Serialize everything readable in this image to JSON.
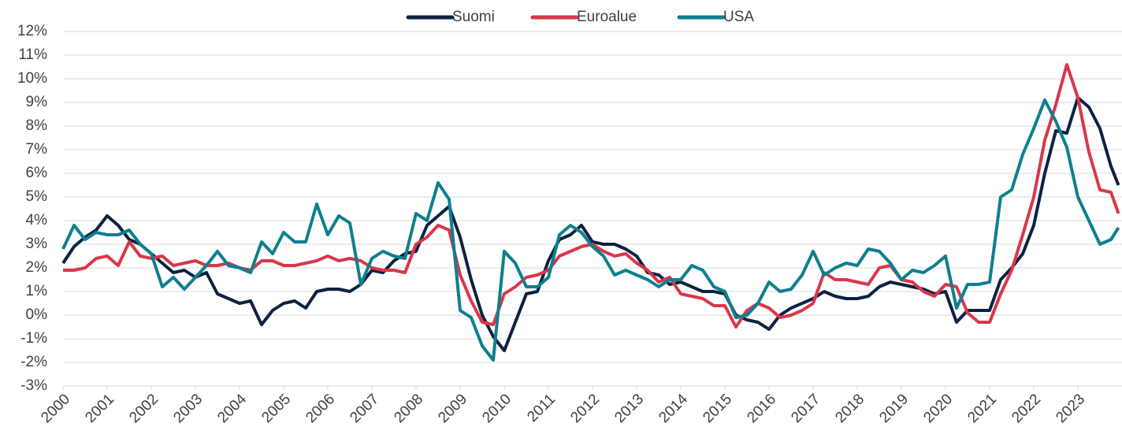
{
  "chart_data": {
    "type": "line",
    "x": [
      2000,
      2000.25,
      2000.5,
      2000.75,
      2001,
      2001.25,
      2001.5,
      2001.75,
      2002,
      2002.25,
      2002.5,
      2002.75,
      2003,
      2003.25,
      2003.5,
      2003.75,
      2004,
      2004.25,
      2004.5,
      2004.75,
      2005,
      2005.25,
      2005.5,
      2005.75,
      2006,
      2006.25,
      2006.5,
      2006.75,
      2007,
      2007.25,
      2007.5,
      2007.75,
      2008,
      2008.25,
      2008.5,
      2008.75,
      2009,
      2009.25,
      2009.5,
      2009.75,
      2010,
      2010.25,
      2010.5,
      2010.75,
      2011,
      2011.25,
      2011.5,
      2011.75,
      2012,
      2012.25,
      2012.5,
      2012.75,
      2013,
      2013.25,
      2013.5,
      2013.75,
      2014,
      2014.25,
      2014.5,
      2014.75,
      2015,
      2015.25,
      2015.5,
      2015.75,
      2016,
      2016.25,
      2016.5,
      2016.75,
      2017,
      2017.25,
      2017.5,
      2017.75,
      2018,
      2018.25,
      2018.5,
      2018.75,
      2019,
      2019.25,
      2019.5,
      2019.75,
      2020,
      2020.25,
      2020.5,
      2020.75,
      2021,
      2021.25,
      2021.5,
      2021.75,
      2022,
      2022.25,
      2022.5,
      2022.75,
      2023,
      2023.25,
      2023.5,
      2023.75,
      2023.92
    ],
    "series": [
      {
        "name": "Suomi",
        "color": "#0d2240",
        "values": [
          2.2,
          2.9,
          3.3,
          3.6,
          4.2,
          3.8,
          3.2,
          3.0,
          2.6,
          2.2,
          1.8,
          1.9,
          1.6,
          1.8,
          0.9,
          0.7,
          0.5,
          0.6,
          -0.4,
          0.2,
          0.5,
          0.6,
          0.3,
          1.0,
          1.1,
          1.1,
          1.0,
          1.3,
          1.9,
          1.8,
          2.3,
          2.6,
          2.7,
          3.8,
          4.2,
          4.6,
          3.3,
          1.5,
          0.0,
          -0.9,
          -1.5,
          -0.3,
          0.9,
          1.0,
          2.3,
          3.2,
          3.4,
          3.8,
          3.1,
          3.0,
          3.0,
          2.8,
          2.5,
          1.8,
          1.7,
          1.3,
          1.4,
          1.2,
          1.0,
          1.0,
          0.9,
          0.0,
          -0.2,
          -0.3,
          -0.6,
          0.0,
          0.3,
          0.5,
          0.7,
          1.0,
          0.8,
          0.7,
          0.7,
          0.8,
          1.2,
          1.4,
          1.3,
          1.2,
          1.1,
          0.9,
          1.0,
          -0.3,
          0.2,
          0.2,
          0.2,
          1.5,
          2.0,
          2.6,
          3.8,
          6.0,
          7.8,
          7.7,
          9.2,
          8.8,
          7.9,
          6.3,
          5.5
        ]
      },
      {
        "name": "Euroalue",
        "color": "#d9374b",
        "values": [
          1.9,
          1.9,
          2.0,
          2.4,
          2.5,
          2.1,
          3.1,
          2.5,
          2.4,
          2.5,
          2.1,
          2.2,
          2.3,
          2.1,
          2.1,
          2.2,
          2.0,
          1.9,
          2.3,
          2.3,
          2.1,
          2.1,
          2.2,
          2.3,
          2.5,
          2.3,
          2.4,
          2.3,
          2.0,
          1.9,
          1.9,
          1.8,
          3.0,
          3.3,
          3.8,
          3.6,
          1.7,
          0.6,
          -0.3,
          -0.4,
          0.9,
          1.2,
          1.6,
          1.7,
          1.9,
          2.5,
          2.7,
          2.9,
          3.0,
          2.7,
          2.5,
          2.6,
          2.2,
          1.9,
          1.4,
          1.6,
          0.9,
          0.8,
          0.7,
          0.4,
          0.4,
          -0.5,
          0.2,
          0.5,
          0.3,
          -0.1,
          0.0,
          0.2,
          0.5,
          1.8,
          1.5,
          1.5,
          1.4,
          1.3,
          2.0,
          2.1,
          1.5,
          1.4,
          1.0,
          0.8,
          1.3,
          1.2,
          0.1,
          -0.3,
          -0.3,
          0.9,
          1.9,
          3.4,
          5.0,
          7.4,
          8.9,
          10.6,
          9.2,
          6.9,
          5.3,
          5.2,
          4.3
        ]
      },
      {
        "name": "USA",
        "color": "#0e7f8e",
        "values": [
          2.8,
          3.8,
          3.2,
          3.5,
          3.4,
          3.4,
          3.6,
          3.0,
          2.6,
          1.2,
          1.6,
          1.1,
          1.6,
          2.1,
          2.7,
          2.1,
          2.0,
          1.8,
          3.1,
          2.6,
          3.5,
          3.1,
          3.1,
          4.7,
          3.4,
          4.2,
          3.9,
          1.3,
          2.4,
          2.7,
          2.5,
          2.4,
          4.3,
          4.0,
          5.6,
          4.9,
          0.2,
          -0.1,
          -1.3,
          -1.9,
          2.7,
          2.2,
          1.2,
          1.2,
          1.6,
          3.4,
          3.8,
          3.5,
          2.9,
          2.5,
          1.7,
          1.9,
          1.7,
          1.5,
          1.2,
          1.5,
          1.5,
          2.1,
          1.9,
          1.2,
          1.0,
          -0.1,
          0.0,
          0.5,
          1.4,
          1.0,
          1.1,
          1.7,
          2.7,
          1.7,
          2.0,
          2.2,
          2.1,
          2.8,
          2.7,
          2.2,
          1.5,
          1.9,
          1.8,
          2.1,
          2.5,
          0.3,
          1.3,
          1.3,
          1.4,
          5.0,
          5.3,
          6.8,
          7.9,
          9.1,
          8.2,
          7.1,
          5.0,
          4.0,
          3.0,
          3.2,
          3.7
        ]
      }
    ],
    "xlim": [
      2000,
      2024
    ],
    "xticks": [
      2000,
      2001,
      2002,
      2003,
      2004,
      2005,
      2006,
      2007,
      2008,
      2009,
      2010,
      2011,
      2012,
      2013,
      2014,
      2015,
      2016,
      2017,
      2018,
      2019,
      2020,
      2021,
      2022,
      2023
    ],
    "ylim": [
      -3,
      12
    ],
    "yticks": [
      {
        "value": -3,
        "label": "-3%"
      },
      {
        "value": -2,
        "label": "-2%"
      },
      {
        "value": -1,
        "label": "-1%"
      },
      {
        "value": 0,
        "label": "0%"
      },
      {
        "value": 1,
        "label": "1%"
      },
      {
        "value": 2,
        "label": "2%"
      },
      {
        "value": 3,
        "label": "3%"
      },
      {
        "value": 4,
        "label": "4%"
      },
      {
        "value": 5,
        "label": "5%"
      },
      {
        "value": 6,
        "label": "6%"
      },
      {
        "value": 7,
        "label": "7%"
      },
      {
        "value": 8,
        "label": "8%"
      },
      {
        "value": 9,
        "label": "9%"
      },
      {
        "value": 10,
        "label": "10%"
      },
      {
        "value": 11,
        "label": "11%"
      },
      {
        "value": 12,
        "label": "12%"
      }
    ],
    "grid": true,
    "legend": "top"
  }
}
